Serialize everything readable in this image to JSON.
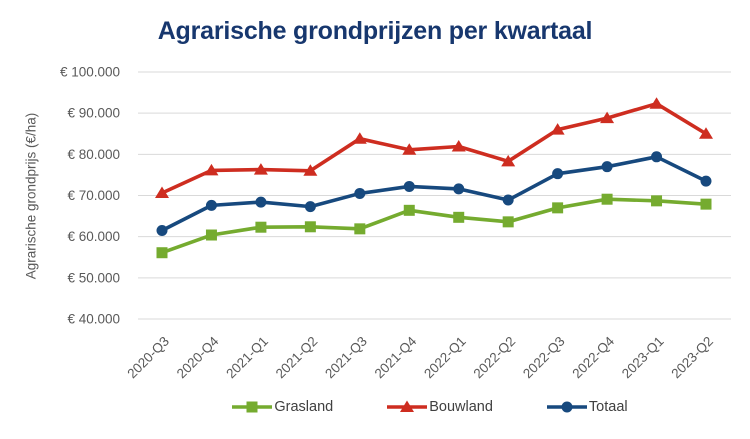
{
  "chart_data": {
    "type": "line",
    "title": "Agrarische grondprijzen per kwartaal",
    "xlabel": "",
    "ylabel": "Agrarische grondprijs (€/ha)",
    "ylim": [
      40000,
      100000
    ],
    "ytick_step": 10000,
    "ytick_labels": [
      "€ 40.000",
      "€ 50.000",
      "€ 60.000",
      "€ 70.000",
      "€ 80.000",
      "€ 90.000",
      "€ 100.000"
    ],
    "categories": [
      "2020-Q3",
      "2020-Q4",
      "2021-Q1",
      "2021-Q2",
      "2021-Q3",
      "2021-Q4",
      "2022-Q1",
      "2022-Q2",
      "2022-Q3",
      "2022-Q4",
      "2023-Q1",
      "2023-Q2"
    ],
    "grid": "horizontal",
    "legend_position": "bottom",
    "series": [
      {
        "name": "Grasland",
        "marker": "square",
        "color": "#75AB2F",
        "values": [
          56100,
          60400,
          62300,
          62400,
          61900,
          66400,
          64700,
          63600,
          67000,
          69100,
          68700,
          67900
        ]
      },
      {
        "name": "Bouwland",
        "marker": "triangle",
        "color": "#CE2D20",
        "values": [
          70600,
          76100,
          76300,
          76000,
          83800,
          81100,
          81900,
          78300,
          86000,
          88800,
          92300,
          85000
        ]
      },
      {
        "name": "Totaal",
        "marker": "circle",
        "color": "#17497E",
        "values": [
          61500,
          67600,
          68400,
          67300,
          70500,
          72200,
          71600,
          68900,
          75300,
          77000,
          79400,
          73500
        ]
      }
    ],
    "colors": {
      "title": "#17376E",
      "axis_text": "#595959",
      "gridline": "#D9D9D9",
      "legend_text": "#404040",
      "background": "#FFFFFF"
    }
  }
}
